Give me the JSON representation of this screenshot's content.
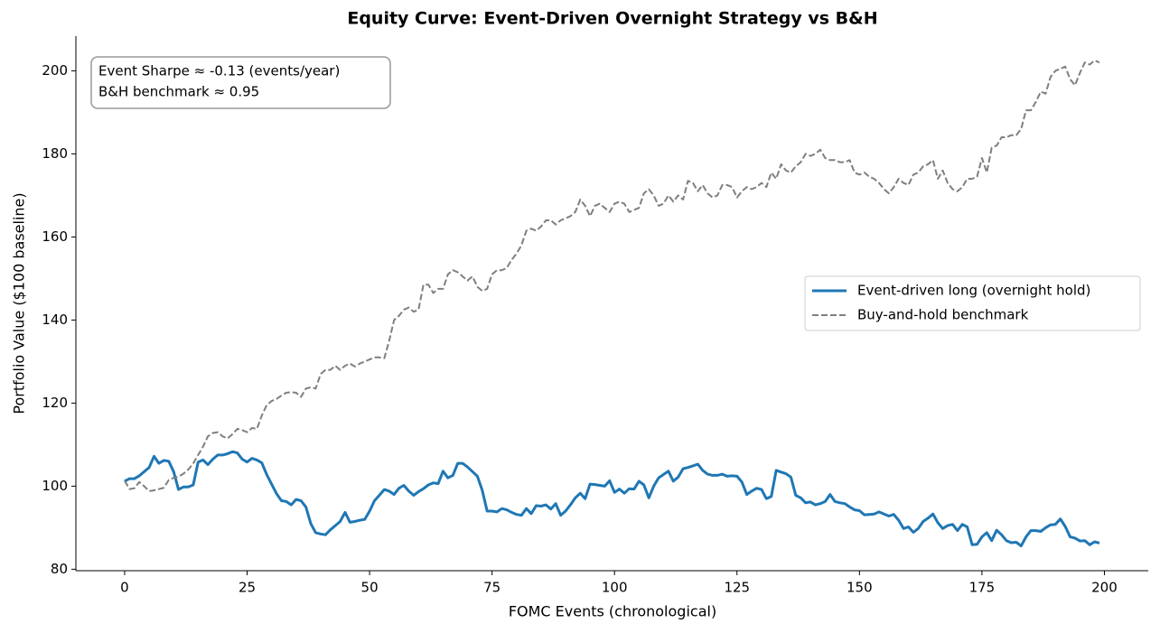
{
  "chart_data": {
    "type": "line",
    "title": "Equity Curve: Event-Driven Overnight Strategy vs B&H",
    "xlabel": "FOMC Events (chronological)",
    "ylabel": "Portfolio Value ($100 baseline)",
    "annotation": [
      "Event Sharpe ≈ -0.13 (events/year)",
      "B&H benchmark ≈ 0.95"
    ],
    "legend": "center right",
    "x": [
      0,
      1,
      2,
      3,
      4,
      5,
      6,
      7,
      8,
      9,
      10,
      11,
      12,
      13,
      14,
      15,
      16,
      17,
      18,
      19,
      20,
      21,
      22,
      23,
      24,
      25,
      26,
      27,
      28,
      29,
      30,
      31,
      32,
      33,
      34,
      35,
      36,
      37,
      38,
      39,
      40,
      41,
      42,
      43,
      44,
      45,
      46,
      47,
      48,
      49,
      50,
      51,
      52,
      53,
      54,
      55,
      56,
      57,
      58,
      59,
      60,
      61,
      62,
      63,
      64,
      65,
      66,
      67,
      68,
      69,
      70,
      71,
      72,
      73,
      74,
      75,
      76,
      77,
      78,
      79,
      80,
      81,
      82,
      83,
      84,
      85,
      86,
      87,
      88,
      89,
      90,
      91,
      92,
      93,
      94,
      95,
      96,
      97,
      98,
      99,
      100,
      101,
      102,
      103,
      104,
      105,
      106,
      107,
      108,
      109,
      110,
      111,
      112,
      113,
      114,
      115,
      116,
      117,
      118,
      119,
      120,
      121,
      122,
      123,
      124,
      125,
      126,
      127,
      128,
      129,
      130,
      131,
      132,
      133,
      134,
      135,
      136,
      137,
      138,
      139,
      140,
      141,
      142,
      143,
      144,
      145,
      146,
      147,
      148,
      149,
      150,
      151,
      152,
      153,
      154,
      155,
      156,
      157,
      158,
      159,
      160,
      161,
      162,
      163,
      164,
      165,
      166,
      167,
      168,
      169,
      170,
      171,
      172,
      173,
      174,
      175,
      176,
      177,
      178,
      179,
      180,
      181,
      182,
      183,
      184,
      185,
      186,
      187,
      188,
      189,
      190,
      191,
      192,
      193,
      194,
      195,
      196,
      197,
      198,
      199
    ],
    "series": [
      {
        "name": "Event-driven long (overnight hold)",
        "color": "#1f77b4",
        "dash": false,
        "values": [
          101.2,
          101.8,
          101.8,
          102.5,
          103.5,
          104.5,
          107.2,
          105.5,
          106.2,
          106.0,
          103.5,
          99.2,
          99.8,
          99.8,
          100.3,
          105.8,
          106.3,
          105.2,
          106.5,
          107.5,
          107.5,
          107.8,
          108.3,
          108.0,
          106.5,
          105.8,
          106.7,
          106.3,
          105.6,
          102.8,
          100.5,
          98.2,
          96.5,
          96.3,
          95.5,
          96.8,
          96.5,
          95.0,
          91.0,
          88.8,
          88.5,
          88.3,
          89.5,
          90.5,
          91.5,
          93.7,
          91.3,
          91.5,
          91.8,
          92.0,
          94.0,
          96.5,
          97.8,
          99.2,
          98.8,
          98.0,
          99.5,
          100.2,
          98.8,
          97.8,
          98.7,
          99.4,
          100.3,
          100.8,
          100.6,
          103.6,
          102.0,
          102.6,
          105.5,
          105.5,
          104.6,
          103.5,
          102.4,
          99.0,
          94.0,
          94.0,
          93.8,
          94.6,
          94.3,
          93.7,
          93.2,
          93.0,
          94.6,
          93.4,
          95.3,
          95.2,
          95.5,
          94.5,
          95.8,
          93.0,
          94.0,
          95.5,
          97.2,
          98.3,
          97.0,
          100.5,
          100.4,
          100.2,
          100.0,
          101.3,
          98.5,
          99.3,
          98.3,
          99.4,
          99.3,
          101.2,
          100.3,
          97.2,
          100.0,
          102.0,
          102.8,
          103.6,
          101.2,
          102.2,
          104.2,
          104.5,
          104.9,
          105.3,
          103.8,
          102.9,
          102.6,
          102.6,
          102.9,
          102.4,
          102.5,
          102.4,
          101.0,
          98.0,
          98.8,
          99.5,
          99.2,
          97.0,
          97.5,
          103.8,
          103.4,
          103.0,
          102.2,
          97.8,
          97.2,
          96.0,
          96.2,
          95.5,
          95.8,
          96.3,
          98.0,
          96.3,
          96.0,
          95.8,
          95.0,
          94.3,
          94.1,
          93.1,
          93.2,
          93.3,
          93.8,
          93.3,
          92.8,
          93.2,
          91.8,
          89.8,
          90.2,
          88.9,
          89.8,
          91.5,
          92.3,
          93.3,
          91.2,
          89.8,
          90.5,
          90.8,
          89.3,
          90.8,
          90.2,
          85.9,
          86.0,
          87.8,
          88.8,
          86.9,
          89.4,
          88.3,
          86.9,
          86.4,
          86.5,
          85.6,
          87.8,
          89.3,
          89.3,
          89.1,
          90.0,
          90.7,
          90.8,
          92.1,
          90.3,
          87.8,
          87.5,
          86.8,
          86.9,
          85.9,
          86.6,
          86.3
        ]
      },
      {
        "name": "Buy-and-hold benchmark",
        "color": "#7f7f7f",
        "dash": true,
        "values": [
          101.3,
          99.3,
          99.5,
          101.0,
          100.0,
          98.8,
          99.0,
          99.3,
          99.6,
          101.5,
          102.0,
          102.3,
          103.0,
          104.0,
          105.5,
          107.5,
          109.5,
          112.0,
          112.8,
          113.0,
          112.0,
          111.5,
          112.5,
          113.8,
          113.5,
          113.0,
          114.0,
          113.8,
          117.0,
          119.5,
          120.5,
          121.0,
          121.8,
          122.5,
          122.6,
          122.5,
          121.5,
          123.5,
          123.8,
          123.5,
          127.0,
          128.0,
          128.0,
          129.0,
          128.0,
          129.0,
          129.5,
          128.8,
          129.5,
          130.0,
          130.5,
          131.0,
          131.0,
          130.8,
          135.0,
          140.0,
          141.0,
          142.5,
          143.0,
          142.0,
          142.5,
          148.5,
          148.5,
          146.5,
          147.5,
          147.5,
          151.0,
          152.0,
          151.5,
          150.5,
          149.5,
          150.5,
          148.0,
          147.0,
          147.5,
          151.0,
          152.0,
          152.0,
          152.5,
          154.5,
          156.0,
          158.0,
          161.5,
          162.0,
          161.5,
          162.5,
          164.0,
          164.0,
          163.0,
          164.0,
          164.5,
          165.0,
          166.0,
          169.0,
          167.5,
          165.0,
          167.5,
          168.0,
          167.0,
          166.0,
          168.0,
          168.5,
          168.0,
          166.0,
          166.5,
          167.0,
          170.5,
          171.5,
          170.0,
          167.5,
          168.0,
          170.0,
          168.5,
          170.0,
          169.0,
          173.5,
          173.0,
          171.0,
          172.5,
          170.5,
          169.5,
          170.0,
          172.5,
          172.5,
          172.0,
          169.5,
          171.0,
          172.0,
          171.5,
          172.0,
          173.0,
          172.0,
          175.5,
          174.0,
          177.5,
          176.0,
          175.5,
          177.0,
          178.0,
          180.0,
          179.5,
          180.0,
          181.0,
          179.0,
          178.5,
          178.5,
          178.0,
          178.0,
          178.5,
          175.5,
          175.0,
          175.5,
          174.5,
          174.0,
          173.0,
          171.5,
          170.5,
          172.0,
          174.0,
          173.0,
          172.5,
          175.0,
          175.5,
          177.0,
          177.5,
          178.5,
          174.0,
          176.0,
          173.0,
          171.5,
          171.0,
          172.0,
          174.0,
          174.0,
          174.5,
          179.0,
          175.5,
          181.5,
          182.0,
          184.0,
          184.0,
          184.5,
          184.5,
          186.0,
          190.5,
          190.5,
          192.5,
          195.0,
          194.5,
          198.5,
          200.0,
          200.5,
          201.0,
          198.0,
          196.5,
          199.5,
          202.0,
          201.5,
          202.5,
          202.0
        ]
      }
    ],
    "xlim": [
      -9.95,
      208.95
    ],
    "xticks": [
      0,
      25,
      50,
      75,
      100,
      125,
      150,
      175,
      200
    ],
    "ylim": [
      79.65,
      208.35
    ],
    "yticks": [
      80,
      100,
      120,
      140,
      160,
      180,
      200
    ]
  }
}
